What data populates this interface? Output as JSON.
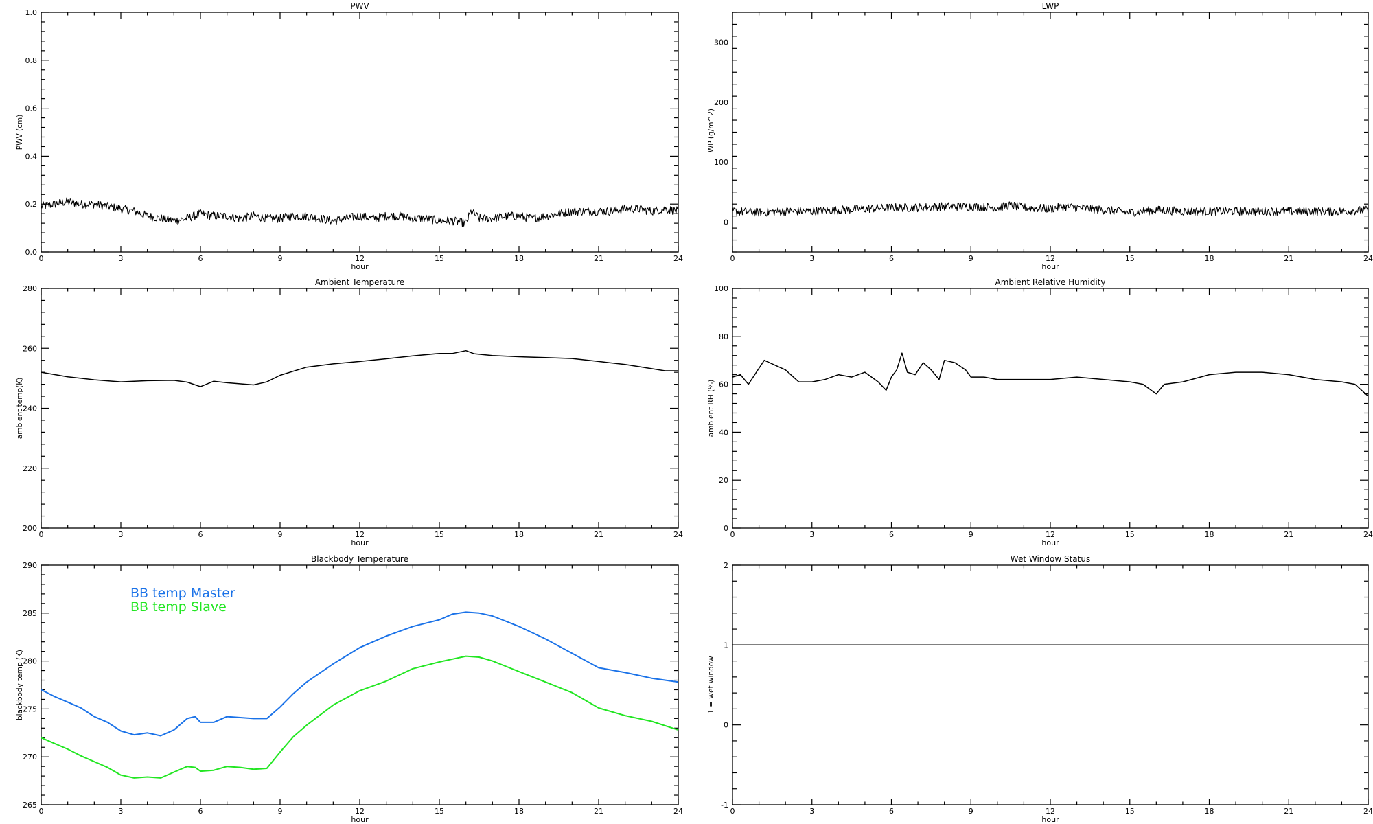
{
  "chart_data": [
    {
      "id": "pwv",
      "type": "line",
      "title": "PWV",
      "xlabel": "hour",
      "ylabel": "PWV (cm)",
      "xlim": [
        0,
        24
      ],
      "ylim": [
        0,
        1.0
      ],
      "xticks": [
        "0",
        "3",
        "6",
        "9",
        "12",
        "15",
        "18",
        "21",
        "24"
      ],
      "yticks": [
        "0.0",
        "0.2",
        "0.4",
        "0.6",
        "0.8",
        "1.0"
      ],
      "series": [
        {
          "color": "#000000",
          "noisy": true,
          "x": [
            0,
            0.5,
            1,
            1.5,
            2,
            2.5,
            3,
            3.5,
            4,
            4.5,
            5,
            5.5,
            6,
            6.5,
            7,
            7.5,
            8,
            8.5,
            9,
            9.5,
            10,
            10.5,
            11,
            11.5,
            12,
            12.5,
            13,
            13.5,
            14,
            14.5,
            15,
            15.5,
            16,
            16.2,
            16.5,
            17,
            17.5,
            18,
            18.5,
            19,
            19.5,
            20,
            20.5,
            21,
            21.5,
            22,
            22.5,
            23,
            23.5,
            24
          ],
          "y": [
            0.19,
            0.2,
            0.21,
            0.2,
            0.2,
            0.19,
            0.18,
            0.17,
            0.15,
            0.14,
            0.13,
            0.14,
            0.16,
            0.15,
            0.15,
            0.14,
            0.15,
            0.14,
            0.14,
            0.15,
            0.15,
            0.14,
            0.13,
            0.14,
            0.15,
            0.14,
            0.15,
            0.15,
            0.14,
            0.14,
            0.13,
            0.13,
            0.12,
            0.17,
            0.14,
            0.14,
            0.15,
            0.15,
            0.14,
            0.15,
            0.16,
            0.17,
            0.17,
            0.17,
            0.17,
            0.18,
            0.18,
            0.17,
            0.18,
            0.17
          ]
        }
      ]
    },
    {
      "id": "lwp",
      "type": "line",
      "title": "LWP",
      "xlabel": "hour",
      "ylabel": "LWP (g/m^2)",
      "xlim": [
        0,
        24
      ],
      "ylim": [
        -50,
        350
      ],
      "xticks": [
        "0",
        "3",
        "6",
        "9",
        "12",
        "15",
        "18",
        "21",
        "24"
      ],
      "yticks": [
        "0",
        "100",
        "200",
        "300"
      ],
      "ytick_values": [
        0,
        100,
        200,
        300
      ],
      "series": [
        {
          "color": "#000000",
          "noisy": true,
          "x": [
            0,
            1,
            2,
            3,
            4,
            5,
            6,
            7,
            8,
            9,
            10,
            10.5,
            11,
            12,
            12.5,
            13,
            14,
            15,
            16,
            17,
            18,
            19,
            20,
            21,
            22,
            23,
            24
          ],
          "y": [
            18,
            16,
            18,
            18,
            20,
            22,
            24,
            24,
            26,
            26,
            24,
            28,
            24,
            22,
            26,
            24,
            20,
            16,
            20,
            18,
            18,
            18,
            18,
            18,
            18,
            18,
            20
          ]
        }
      ]
    },
    {
      "id": "ambient_temp",
      "type": "line",
      "title": "Ambient Temperature",
      "xlabel": "hour",
      "ylabel": "ambient temp(K)",
      "xlim": [
        0,
        24
      ],
      "ylim": [
        200,
        280
      ],
      "xticks": [
        "0",
        "3",
        "6",
        "9",
        "12",
        "15",
        "18",
        "21",
        "24"
      ],
      "yticks": [
        "200",
        "220",
        "240",
        "260",
        "280"
      ],
      "series": [
        {
          "color": "#000000",
          "noisy": false,
          "x": [
            0,
            1,
            2,
            3,
            4,
            5,
            5.5,
            6,
            6.5,
            7,
            8,
            8.5,
            9,
            10,
            11,
            12,
            13,
            14,
            15,
            15.5,
            16,
            16.3,
            17,
            18,
            19,
            20,
            21,
            22,
            23,
            23.5,
            24
          ],
          "y": [
            252,
            250.5,
            249.5,
            248.8,
            249.2,
            249.3,
            248.7,
            247.2,
            249,
            248.5,
            247.8,
            248.8,
            251,
            253.7,
            254.8,
            255.6,
            256.5,
            257.5,
            258.3,
            258.3,
            259.2,
            258.2,
            257.6,
            257.2,
            256.9,
            256.6,
            255.6,
            254.6,
            253.2,
            252.5,
            252.5
          ]
        }
      ]
    },
    {
      "id": "ambient_rh",
      "type": "line",
      "title": "Ambient Relative Humidity",
      "xlabel": "hour",
      "ylabel": "ambient RH (%)",
      "xlim": [
        0,
        24
      ],
      "ylim": [
        0,
        100
      ],
      "xticks": [
        "0",
        "3",
        "6",
        "9",
        "12",
        "15",
        "18",
        "21",
        "24"
      ],
      "yticks": [
        "0",
        "20",
        "40",
        "60",
        "80",
        "100"
      ],
      "series": [
        {
          "color": "#000000",
          "noisy": false,
          "x": [
            0,
            0.3,
            0.6,
            0.9,
            1.2,
            1.6,
            2,
            2.5,
            3,
            3.5,
            4,
            4.5,
            5,
            5.5,
            5.8,
            6.0,
            6.2,
            6.4,
            6.6,
            6.9,
            7.2,
            7.5,
            7.8,
            8.0,
            8.4,
            8.8,
            9,
            9.5,
            10,
            11,
            12,
            13,
            14,
            15,
            15.5,
            16,
            16.3,
            17,
            18,
            19,
            20,
            21,
            22,
            23,
            23.5,
            24
          ],
          "y": [
            63,
            64,
            60,
            65,
            70,
            68,
            66,
            61,
            61,
            62,
            64,
            63,
            65,
            61,
            57.5,
            63,
            66,
            73,
            65,
            64,
            69,
            66,
            62,
            70,
            69,
            66,
            63,
            63,
            62,
            62,
            62,
            63,
            62,
            61,
            60,
            56,
            60,
            61,
            64,
            65,
            65,
            64,
            62,
            61,
            60,
            55
          ]
        }
      ]
    },
    {
      "id": "blackbody_temp",
      "type": "line",
      "title": "Blackbody Temperature",
      "xlabel": "hour",
      "ylabel": "blackbody temp (K)",
      "xlim": [
        0,
        24
      ],
      "ylim": [
        265,
        290
      ],
      "xticks": [
        "0",
        "3",
        "6",
        "9",
        "12",
        "15",
        "18",
        "21",
        "24"
      ],
      "yticks": [
        "265",
        "270",
        "275",
        "280",
        "285",
        "290"
      ],
      "legend": [
        "BB temp Master",
        "BB temp Slave"
      ],
      "legend_position": "top-left",
      "series": [
        {
          "name": "BB temp Master",
          "color": "#1a72e8",
          "noisy": false,
          "x": [
            0,
            0.5,
            1,
            1.5,
            2,
            2.5,
            3,
            3.5,
            4,
            4.5,
            5,
            5.5,
            5.8,
            6,
            6.5,
            7,
            7.5,
            8,
            8.5,
            9,
            9.5,
            10,
            11,
            12,
            13,
            14,
            15,
            15.5,
            16,
            16.5,
            17,
            18,
            19,
            20,
            21,
            22,
            23,
            24
          ],
          "y": [
            277,
            276.3,
            275.7,
            275.1,
            274.2,
            273.6,
            272.7,
            272.3,
            272.5,
            272.2,
            272.8,
            274,
            274.2,
            273.6,
            273.6,
            274.2,
            274.1,
            274.0,
            274.0,
            275.2,
            276.6,
            277.8,
            279.7,
            281.4,
            282.6,
            283.6,
            284.3,
            284.9,
            285.1,
            285.0,
            284.7,
            283.6,
            282.3,
            280.8,
            279.3,
            278.8,
            278.2,
            277.8
          ]
        },
        {
          "name": "BB temp Slave",
          "color": "#22e622",
          "noisy": false,
          "x": [
            0,
            0.5,
            1,
            1.5,
            2,
            2.5,
            3,
            3.5,
            4,
            4.5,
            5,
            5.5,
            5.8,
            6,
            6.5,
            7,
            7.5,
            8,
            8.5,
            9,
            9.5,
            10,
            11,
            12,
            13,
            14,
            15,
            15.5,
            16,
            16.5,
            17,
            18,
            19,
            20,
            21,
            22,
            23,
            24
          ],
          "y": [
            272,
            271.4,
            270.8,
            270.1,
            269.5,
            268.9,
            268.1,
            267.8,
            267.9,
            267.8,
            268.4,
            269.0,
            268.9,
            268.5,
            268.6,
            269.0,
            268.9,
            268.7,
            268.8,
            270.5,
            272.1,
            273.3,
            275.4,
            276.9,
            277.9,
            279.2,
            279.9,
            280.2,
            280.5,
            280.4,
            280.0,
            278.9,
            277.8,
            276.7,
            275.1,
            274.3,
            273.7,
            272.8
          ]
        }
      ]
    },
    {
      "id": "wet_window",
      "type": "line",
      "title": "Wet Window Status",
      "xlabel": "hour",
      "ylabel": "1 = wet window",
      "xlim": [
        0,
        24
      ],
      "ylim": [
        -1,
        2
      ],
      "xticks": [
        "0",
        "3",
        "6",
        "9",
        "12",
        "15",
        "18",
        "21",
        "24"
      ],
      "yticks": [
        "-1",
        "0",
        "1",
        "2"
      ],
      "ytick_values": [
        -1,
        0,
        1,
        2
      ],
      "series": [
        {
          "color": "#000000",
          "noisy": false,
          "x": [
            0,
            24
          ],
          "y": [
            1,
            1
          ]
        }
      ]
    }
  ]
}
